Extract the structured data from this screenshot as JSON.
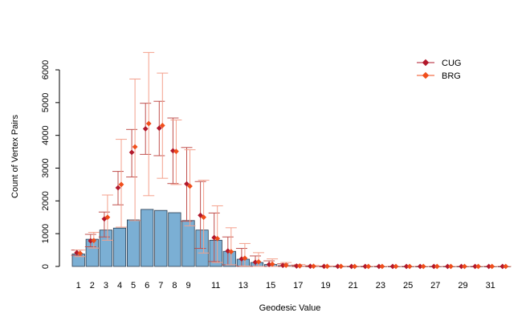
{
  "chart_data": {
    "type": "bar",
    "xlabel": "Geodesic Value",
    "ylabel": "Count of Vertex Pairs",
    "ylim": [
      0,
      6500
    ],
    "y_ticks": [
      0,
      1000,
      2000,
      3000,
      4000,
      5000,
      6000
    ],
    "x_tick_labels": [
      1,
      2,
      3,
      4,
      5,
      6,
      7,
      8,
      9,
      11,
      13,
      15,
      17,
      19,
      21,
      23,
      25,
      27,
      29,
      31
    ],
    "grid": false,
    "legend_position": "top-right",
    "categories": [
      1,
      2,
      3,
      4,
      5,
      6,
      7,
      8,
      9,
      10,
      11,
      12,
      13,
      14,
      15,
      16,
      17,
      18,
      19,
      20,
      21,
      22,
      23,
      24,
      25,
      26,
      27,
      28,
      29,
      30,
      31,
      32
    ],
    "observed": {
      "values": [
        380,
        830,
        1110,
        1170,
        1420,
        1740,
        1710,
        1640,
        1400,
        1110,
        800,
        460,
        220,
        120,
        60,
        25,
        10,
        5,
        3,
        2,
        1,
        1,
        1,
        0,
        0,
        0,
        0,
        0,
        0,
        0,
        0,
        0
      ],
      "color": "#7bafd4"
    },
    "series": [
      {
        "name": "CUG",
        "color": "#b2182b",
        "err_color": "#c0504d",
        "values": [
          420,
          780,
          1450,
          2400,
          3480,
          4200,
          4220,
          3530,
          2520,
          1560,
          880,
          470,
          230,
          130,
          60,
          30,
          12,
          6,
          3,
          2,
          1,
          1,
          1,
          0,
          0,
          0,
          0,
          0,
          0,
          0,
          0,
          0
        ],
        "err_low": [
          340,
          600,
          900,
          1880,
          2730,
          3420,
          3380,
          2530,
          1380,
          550,
          150,
          50,
          10,
          0,
          0,
          0,
          0,
          0,
          0,
          0,
          0,
          0,
          0,
          0,
          0,
          0,
          0,
          0,
          0,
          0,
          0,
          0
        ],
        "err_high": [
          500,
          980,
          1660,
          2900,
          4180,
          4980,
          5040,
          4530,
          3630,
          2590,
          1630,
          900,
          550,
          320,
          170,
          80,
          40,
          20,
          10,
          5,
          3,
          2,
          1,
          1,
          0,
          0,
          0,
          0,
          0,
          0,
          0,
          0
        ]
      },
      {
        "name": "BRG",
        "color": "#f04e1c",
        "err_color": "#f4a08c",
        "values": [
          400,
          790,
          1500,
          2500,
          3650,
          4360,
          4300,
          3510,
          2450,
          1500,
          850,
          450,
          250,
          140,
          70,
          35,
          15,
          7,
          3,
          2,
          1,
          1,
          1,
          0,
          0,
          0,
          0,
          0,
          0,
          0,
          0,
          0
        ],
        "err_low": [
          300,
          560,
          800,
          1200,
          1400,
          2160,
          2690,
          2500,
          1240,
          410,
          120,
          50,
          10,
          0,
          0,
          0,
          0,
          0,
          0,
          0,
          0,
          0,
          0,
          0,
          0,
          0,
          0,
          0,
          0,
          0,
          0,
          0
        ],
        "err_high": [
          500,
          1040,
          2180,
          3880,
          5720,
          6530,
          5900,
          4470,
          3560,
          2630,
          1850,
          1180,
          700,
          420,
          230,
          120,
          60,
          30,
          15,
          8,
          4,
          2,
          1,
          1,
          0,
          0,
          0,
          0,
          0,
          0,
          0,
          0
        ]
      }
    ]
  }
}
